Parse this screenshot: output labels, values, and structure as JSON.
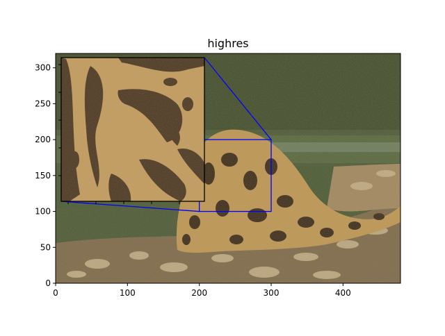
{
  "chart_data": {
    "type": "image",
    "title": "highres",
    "xlabel": "",
    "ylabel": "",
    "xlim": [
      0,
      480
    ],
    "ylim": [
      0,
      320
    ],
    "x_ticks": [
      0,
      100,
      200,
      300,
      400
    ],
    "y_ticks": [
      0,
      50,
      100,
      150,
      200,
      250,
      300
    ],
    "grid": false,
    "zoom_region": {
      "x": [
        200,
        300
      ],
      "y": [
        100,
        200
      ]
    },
    "indicator_color": "#0000ff",
    "image_content": "photo of a clouded leopard on rocky riverbank"
  }
}
